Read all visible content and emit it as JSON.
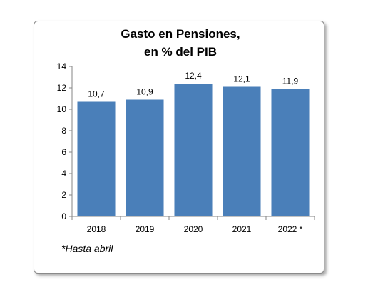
{
  "chart_data": {
    "type": "bar",
    "title_lines": [
      "Gasto en Pensiones,",
      "en % del PIB"
    ],
    "categories": [
      "2018",
      "2019",
      "2020",
      "2021",
      "2022 *"
    ],
    "values": [
      10.7,
      10.9,
      12.4,
      12.1,
      11.9
    ],
    "data_labels": [
      "10,7",
      "10,9",
      "12,4",
      "12,1",
      "11,9"
    ],
    "ylim": [
      0,
      14
    ],
    "yticks": [
      0,
      2,
      4,
      6,
      8,
      10,
      12,
      14
    ],
    "grid": false,
    "legend": "none",
    "bar_color": "#4a7fb9",
    "xlabel": "",
    "ylabel": "",
    "footnote": "*Hasta abril"
  }
}
